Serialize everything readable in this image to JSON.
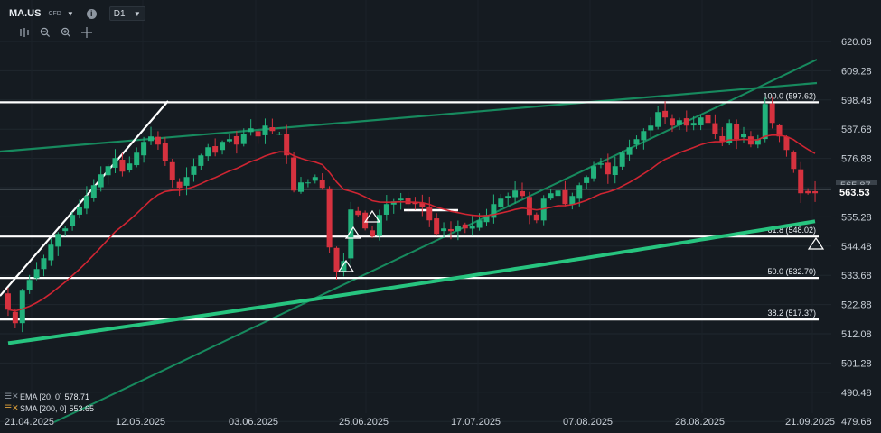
{
  "header": {
    "symbol": "MA.US",
    "instrument_type": "CFD",
    "timeframe": "D1",
    "icons": [
      "dropdown-caret-icon",
      "info-icon",
      "indicators-icon",
      "zoom-out-icon",
      "zoom-in-icon",
      "crosshair-icon"
    ]
  },
  "legend": {
    "ema_label": "EMA [20, 0]",
    "ema_value": "578.71",
    "sma_label": "SMA [200, 0]",
    "sma_value": "553.65"
  },
  "colors": {
    "background": "#151b21",
    "up_candle": "#22b27c",
    "down_candle": "#d6323f",
    "ema": "#cf2532",
    "sma": "#27c47f",
    "trend_line": "#178a5e",
    "level_line": "#ffffff"
  },
  "chart_data": {
    "type": "candlestick",
    "y_ticks": [
      "620.08",
      "609.28",
      "598.48",
      "587.68",
      "576.88",
      "566.08",
      "555.28",
      "544.48",
      "533.68",
      "522.88",
      "512.08",
      "501.28",
      "490.48",
      "479.68"
    ],
    "x_ticks": [
      "21.04.2025",
      "12.05.2025",
      "03.06.2025",
      "25.06.2025",
      "17.07.2025",
      "07.08.2025",
      "28.08.2025",
      "21.09.2025"
    ],
    "ylim": [
      479.68,
      620.08
    ],
    "last_price": "563.53",
    "partial_price_tag": "565.87",
    "fib_levels": [
      {
        "label": "100.0 (597.62)",
        "value": 597.62
      },
      {
        "label": "61.8 (548.02)",
        "value": 548.02
      },
      {
        "label": "50.0 (532.70)",
        "value": 532.7
      },
      {
        "label": "38.2 (517.37)",
        "value": 517.37
      }
    ],
    "closes": [
      521,
      516,
      528,
      532,
      536,
      540,
      545,
      549,
      551,
      556,
      559,
      563,
      567,
      571,
      574,
      577,
      572,
      575,
      579,
      583,
      585,
      582,
      576,
      569,
      566,
      570,
      574,
      578,
      581,
      579,
      583,
      584,
      582,
      586,
      588,
      585,
      589,
      587,
      586,
      578,
      565,
      568,
      568,
      570,
      566,
      544,
      535,
      539,
      558,
      556,
      551,
      548,
      556,
      560,
      561,
      562,
      560,
      560,
      559,
      554,
      549,
      551,
      550,
      552,
      551,
      552,
      554,
      556,
      560,
      562,
      563,
      565,
      563,
      556,
      554,
      562,
      564,
      565,
      560,
      563,
      567,
      570,
      574,
      575,
      571,
      574,
      579,
      581,
      584,
      587,
      589,
      594,
      592,
      589,
      591,
      589,
      590,
      592,
      590,
      586,
      583,
      590,
      584,
      586,
      582,
      584,
      597,
      590,
      585,
      580,
      573,
      564,
      564,
      564
    ]
  }
}
